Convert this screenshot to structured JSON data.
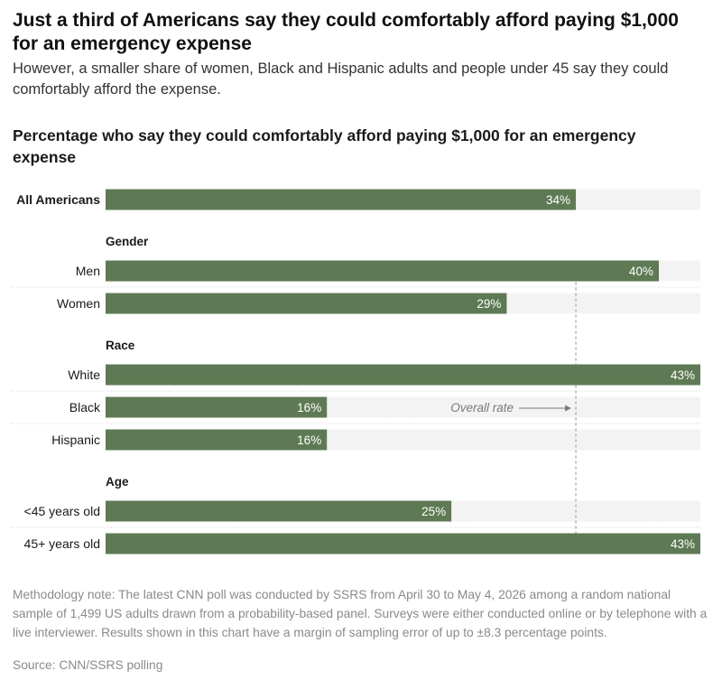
{
  "headline": "Just a third of Americans say they could comfortably afford paying $1,000 for an emergency expense",
  "dek": "However, a smaller share of women, Black and Hispanic adults and people under 45 say they could comfortably afford the expense.",
  "methodology": "Methodology note: The latest CNN poll was conducted by SSRS from April 30 to May 4, 2026 among a random national sample of 1,499 US adults drawn from a probability-based panel. Surveys were either conducted online or by telephone with a live interviewer. Results shown in this chart have a margin of sampling error of up to ±8.3 percentage points.",
  "source": "Source: CNN/SSRS polling",
  "colors": {
    "bar": "#5e7a54",
    "track": "#f3f3f3",
    "reference_line": "#a8a8a8"
  },
  "chart_data": {
    "type": "bar",
    "orientation": "horizontal",
    "title": "Percentage who say they could comfortably afford paying $1,000 for an emergency expense",
    "xlim": [
      0,
      43
    ],
    "value_suffix": "%",
    "reference": {
      "value": 34,
      "label": "Overall rate"
    },
    "groups": [
      {
        "name": "",
        "rows": [
          {
            "label": "All Americans",
            "value": 34,
            "bold": true
          }
        ]
      },
      {
        "name": "Gender",
        "rows": [
          {
            "label": "Men",
            "value": 40
          },
          {
            "label": "Women",
            "value": 29
          }
        ]
      },
      {
        "name": "Race",
        "rows": [
          {
            "label": "White",
            "value": 43
          },
          {
            "label": "Black",
            "value": 16
          },
          {
            "label": "Hispanic",
            "value": 16
          }
        ]
      },
      {
        "name": "Age",
        "rows": [
          {
            "label": "<45 years old",
            "value": 25
          },
          {
            "label": "45+ years old",
            "value": 43
          }
        ]
      }
    ]
  }
}
